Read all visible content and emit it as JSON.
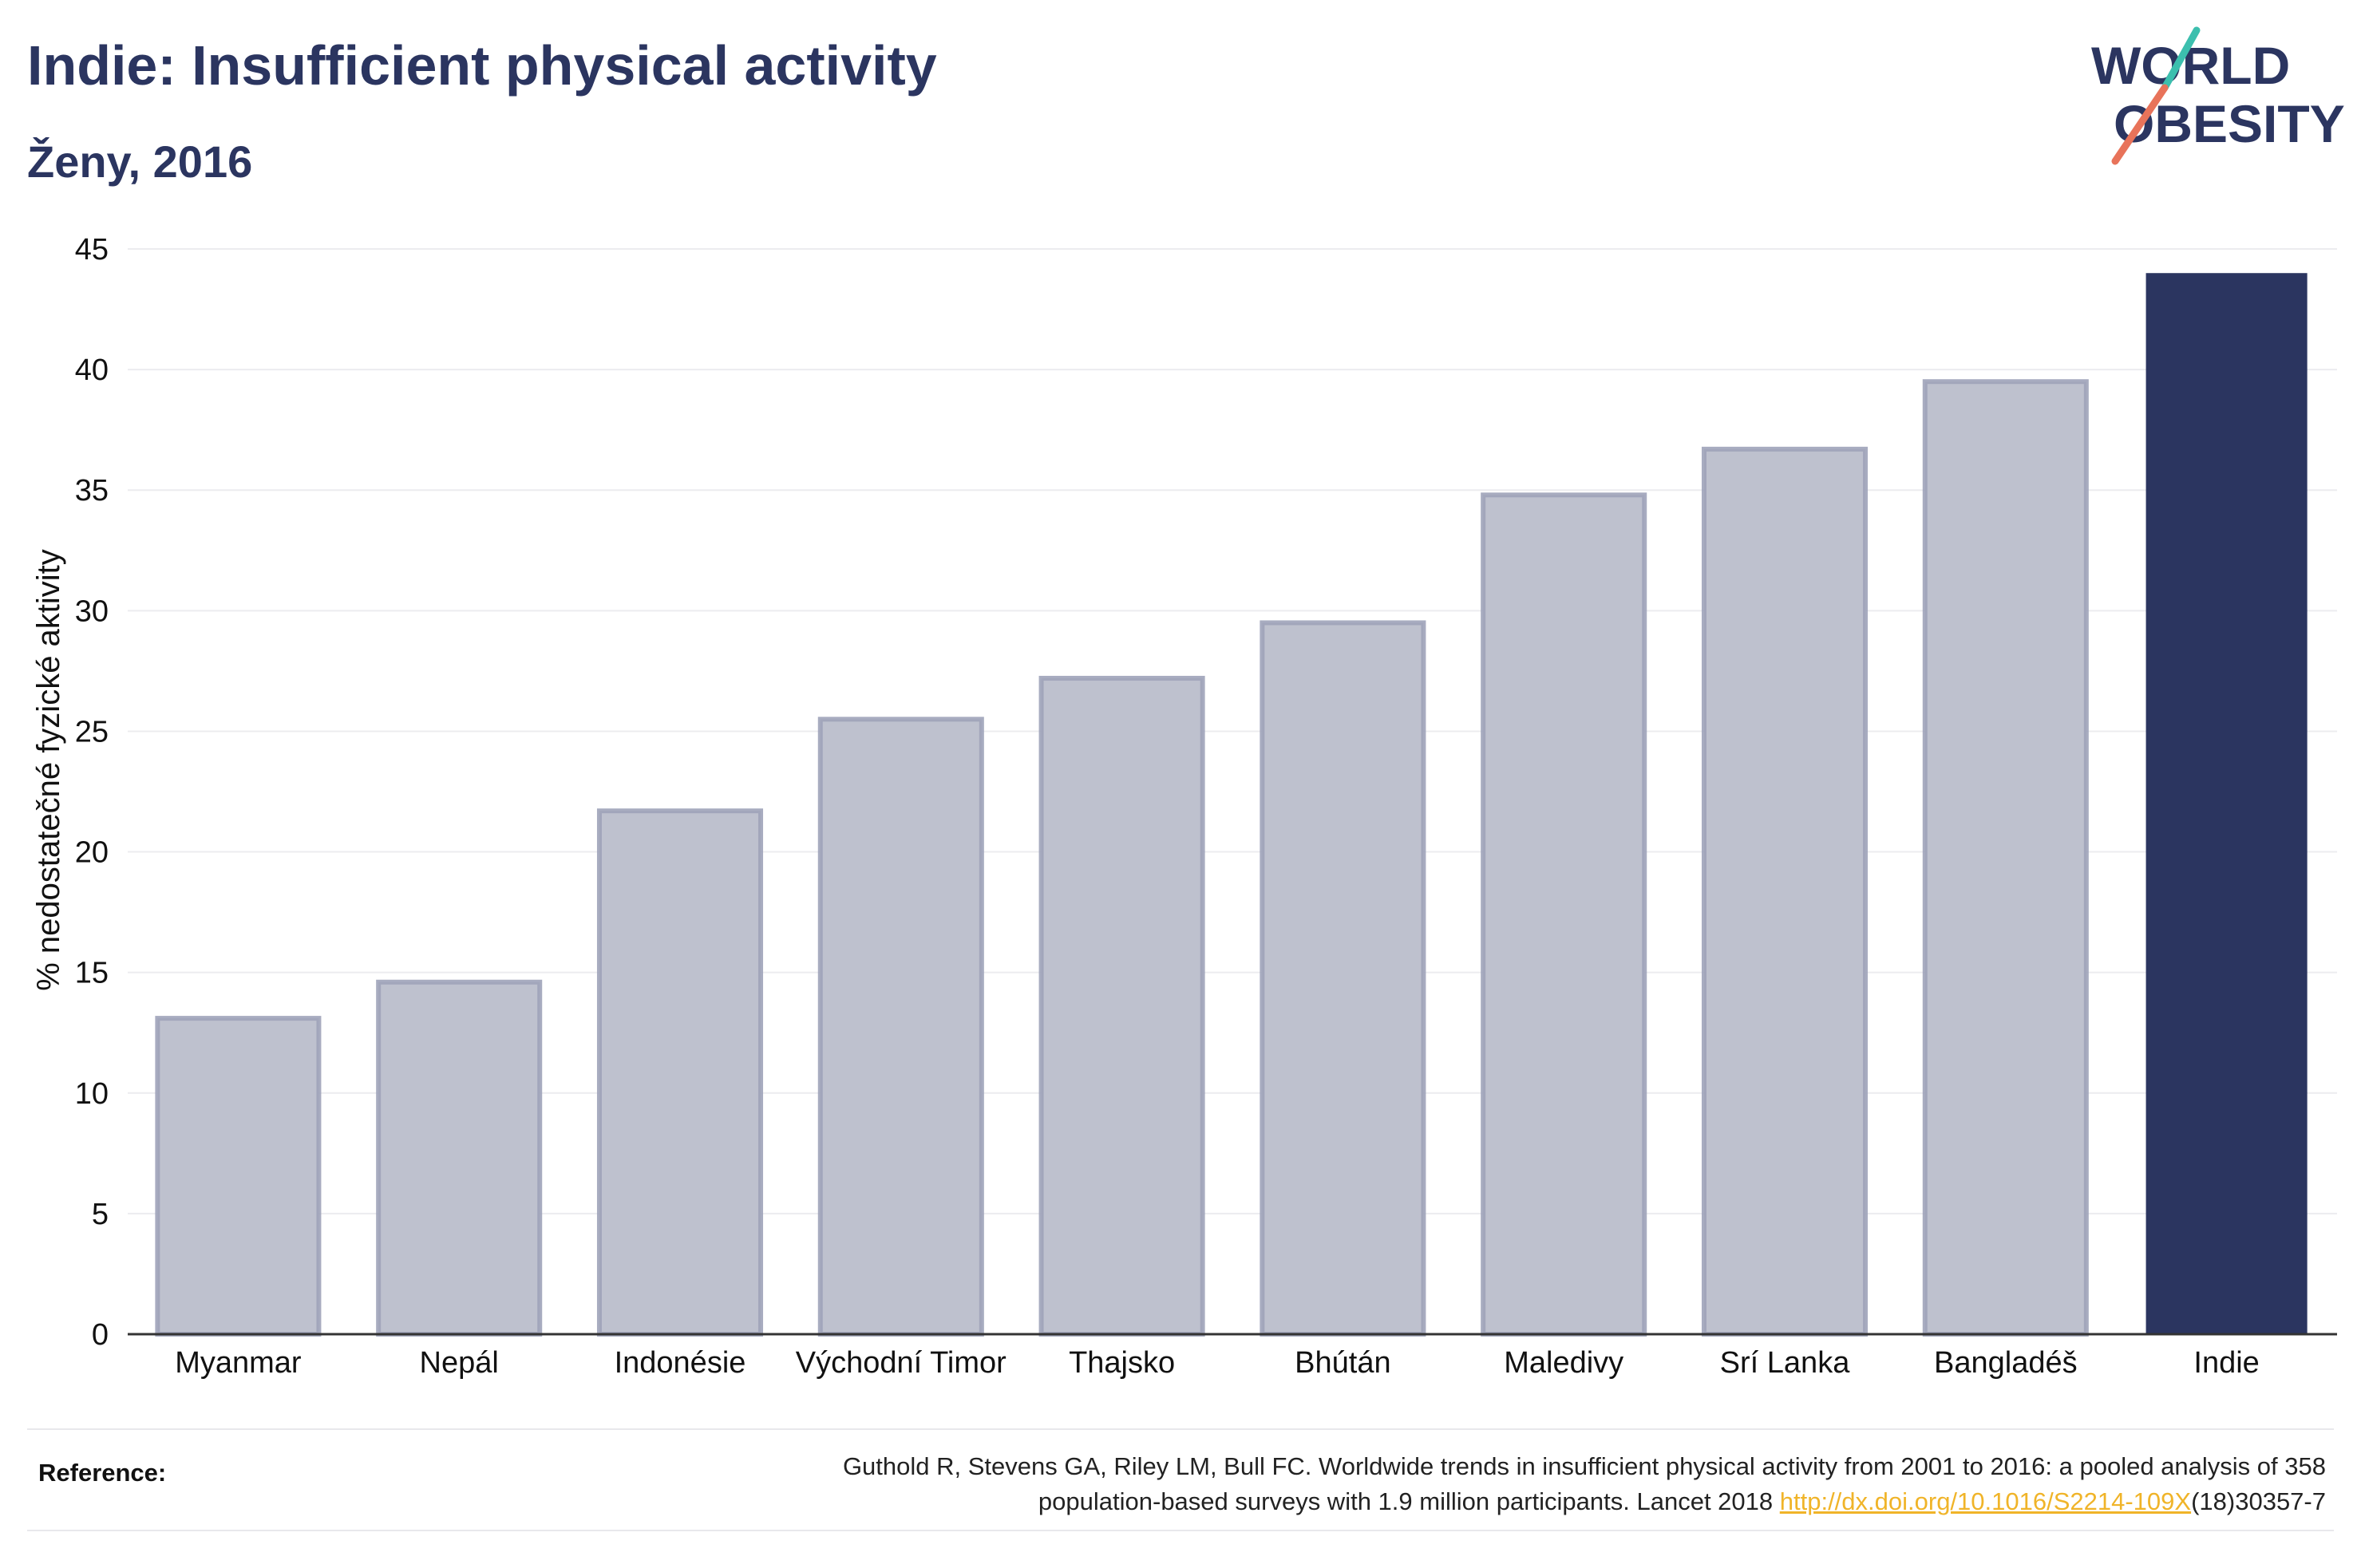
{
  "header": {
    "title": "Indie: Insufficient physical activity",
    "subtitle": "Ženy, 2016"
  },
  "logo": {
    "line1": "WORLD",
    "line2": "OBESITY",
    "icon": "world-obesity-logo"
  },
  "colors": {
    "highlight": "#2b3560",
    "bar_fill": "#bec1ce",
    "bar_stroke": "#9ea3b9",
    "grid": "#ececef",
    "axis": "#333333",
    "link": "#f0b429"
  },
  "chart_data": {
    "type": "bar",
    "categories": [
      "Myanmar",
      "Nepál",
      "Indonésie",
      "Východní Timor",
      "Thajsko",
      "Bhútán",
      "Maledivy",
      "Srí Lanka",
      "Bangladéš",
      "Indie"
    ],
    "values": [
      13.1,
      14.6,
      21.7,
      25.5,
      27.2,
      29.5,
      34.8,
      36.7,
      39.5,
      44.0
    ],
    "highlight": "Indie",
    "xlabel": "",
    "ylabel": "% nedostatečné fyzické aktivity",
    "ylim": [
      0,
      45
    ],
    "yticks": [
      0,
      5,
      10,
      15,
      20,
      25,
      30,
      35,
      40,
      45
    ],
    "grid": true
  },
  "reference": {
    "label": "Reference:",
    "line1": "Guthold R, Stevens GA, Riley LM, Bull FC. Worldwide trends in insufficient physical activity from 2001 to 2016: a pooled analysis of 358",
    "line2_prefix": "population-based surveys with 1.9 million participants. Lancet 2018 ",
    "link_text": "http://dx.doi.org/10.1016/S2214-109X",
    "line2_suffix": "(18)30357-7"
  }
}
